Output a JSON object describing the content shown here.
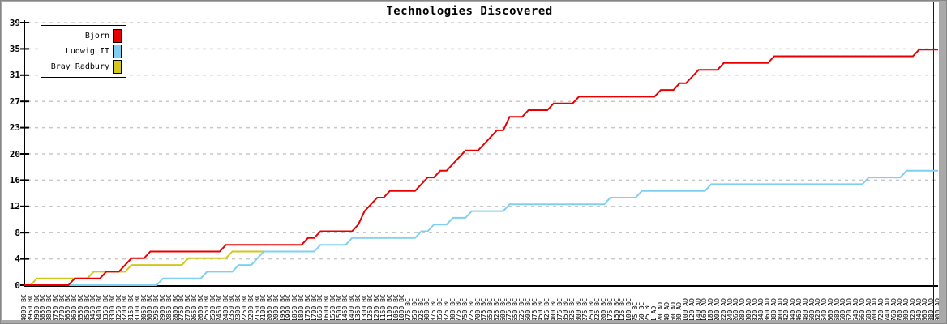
{
  "window": {
    "background": "#ffffff",
    "frame_color": "#a9a9a9"
  },
  "title": "Technologies Discovered",
  "legend": {
    "items": [
      {
        "label": "Bjorn",
        "color": "#e80000"
      },
      {
        "label": "Ludwig II",
        "color": "#7fd0f0"
      },
      {
        "label": "Bray Radbury",
        "color": "#d2c81b"
      }
    ]
  },
  "chart_data": {
    "type": "line",
    "title": "Technologies Discovered",
    "xlabel": "",
    "ylabel": "",
    "grid": true,
    "legend_position": "top-left",
    "y_axis": {
      "min": 0,
      "max": 39,
      "tick_labels": [
        "0",
        "4",
        "8",
        "12",
        "16",
        "20",
        "23",
        "27",
        "31",
        "35",
        "39"
      ]
    },
    "x_axis": {
      "tick_labels": [
        "4000 BC",
        "3950 BC",
        "3900 BC",
        "3850 BC",
        "3800 BC",
        "3750 BC",
        "3700 BC",
        "3650 BC",
        "3600 BC",
        "3550 BC",
        "3500 BC",
        "3450 BC",
        "3400 BC",
        "3350 BC",
        "3300 BC",
        "3250 BC",
        "3200 BC",
        "3150 BC",
        "3100 BC",
        "3050 BC",
        "3000 BC",
        "2950 BC",
        "2900 BC",
        "2850 BC",
        "2800 BC",
        "2750 BC",
        "2700 BC",
        "2650 BC",
        "2600 BC",
        "2550 BC",
        "2500 BC",
        "2450 BC",
        "2400 BC",
        "2350 BC",
        "2300 BC",
        "2250 BC",
        "2200 BC",
        "2150 BC",
        "2100 BC",
        "2050 BC",
        "2000 BC",
        "1950 BC",
        "1900 BC",
        "1850 BC",
        "1800 BC",
        "1750 BC",
        "1700 BC",
        "1650 BC",
        "1600 BC",
        "1550 BC",
        "1500 BC",
        "1450 BC",
        "1400 BC",
        "1350 BC",
        "1300 BC",
        "1250 BC",
        "1200 BC",
        "1150 BC",
        "1100 BC",
        "1050 BC",
        "1000 BC",
        "975 BC",
        "950 BC",
        "925 BC",
        "900 BC",
        "875 BC",
        "850 BC",
        "825 BC",
        "800 BC",
        "775 BC",
        "750 BC",
        "725 BC",
        "700 BC",
        "675 BC",
        "650 BC",
        "625 BC",
        "600 BC",
        "575 BC",
        "550 BC",
        "525 BC",
        "500 BC",
        "475 BC",
        "450 BC",
        "425 BC",
        "400 BC",
        "375 BC",
        "350 BC",
        "325 BC",
        "300 BC",
        "275 BC",
        "250 BC",
        "225 BC",
        "200 BC",
        "175 BC",
        "150 BC",
        "125 BC",
        "100 BC",
        "75 BC",
        "50 BC",
        "25 BC",
        "1 AD",
        "20 AD",
        "40 AD",
        "60 AD",
        "80 AD",
        "100 AD",
        "120 AD",
        "140 AD",
        "160 AD",
        "180 AD",
        "200 AD",
        "220 AD",
        "240 AD",
        "260 AD",
        "280 AD",
        "300 AD",
        "320 AD",
        "340 AD",
        "360 AD",
        "380 AD",
        "400 AD",
        "420 AD",
        "440 AD",
        "460 AD",
        "480 AD",
        "500 AD",
        "520 AD",
        "540 AD",
        "560 AD",
        "580 AD",
        "600 AD",
        "620 AD",
        "640 AD",
        "660 AD",
        "680 AD",
        "700 AD",
        "720 AD",
        "740 AD",
        "760 AD",
        "780 AD",
        "800 AD",
        "820 AD",
        "840 AD",
        "860 AD",
        "880 AD",
        "900 AD"
      ]
    },
    "series": [
      {
        "name": "Bjorn",
        "color": "#e80000",
        "values": [
          0,
          0,
          0,
          0,
          0,
          0,
          0,
          0,
          1,
          1,
          1,
          1,
          1,
          2,
          2,
          2,
          3,
          4,
          4,
          4,
          5,
          5,
          5,
          5,
          5,
          5,
          5,
          5,
          5,
          5,
          5,
          5,
          6,
          6,
          6,
          6,
          6,
          6,
          6,
          6,
          6,
          6,
          6,
          6,
          6,
          7,
          7,
          8,
          8,
          8,
          8,
          8,
          8,
          9,
          11,
          12,
          13,
          13,
          14,
          14,
          14,
          14,
          14,
          15,
          16,
          16,
          17,
          17,
          18,
          19,
          20,
          20,
          20,
          21,
          22,
          23,
          23,
          25,
          25,
          25,
          26,
          26,
          26,
          26,
          27,
          27,
          27,
          27,
          28,
          28,
          28,
          28,
          28,
          28,
          28,
          28,
          28,
          28,
          28,
          28,
          28,
          29,
          29,
          29,
          30,
          30,
          31,
          32,
          32,
          32,
          32,
          33,
          33,
          33,
          33,
          33,
          33,
          33,
          33,
          34,
          34,
          34,
          34,
          34,
          34,
          34,
          34,
          34,
          34,
          34,
          34,
          34,
          34,
          34,
          34,
          34,
          34,
          34,
          34,
          34,
          34,
          34,
          35,
          35,
          35,
          35
        ]
      },
      {
        "name": "Ludwig II",
        "color": "#7fd0f0",
        "values": [
          0,
          0,
          0,
          0,
          0,
          0,
          0,
          0,
          0,
          0,
          0,
          0,
          0,
          0,
          0,
          0,
          0,
          0,
          0,
          0,
          0,
          0,
          1,
          1,
          1,
          1,
          1,
          1,
          1,
          2,
          2,
          2,
          2,
          2,
          3,
          3,
          3,
          4,
          5,
          5,
          5,
          5,
          5,
          5,
          5,
          5,
          5,
          6,
          6,
          6,
          6,
          6,
          7,
          7,
          7,
          7,
          7,
          7,
          7,
          7,
          7,
          7,
          7,
          8,
          8,
          9,
          9,
          9,
          10,
          10,
          10,
          11,
          11,
          11,
          11,
          11,
          11,
          12,
          12,
          12,
          12,
          12,
          12,
          12,
          12,
          12,
          12,
          12,
          12,
          12,
          12,
          12,
          12,
          13,
          13,
          13,
          13,
          13,
          14,
          14,
          14,
          14,
          14,
          14,
          14,
          14,
          14,
          14,
          14,
          15,
          15,
          15,
          15,
          15,
          15,
          15,
          15,
          15,
          15,
          15,
          15,
          15,
          15,
          15,
          15,
          15,
          15,
          15,
          15,
          15,
          15,
          15,
          15,
          15,
          16,
          16,
          16,
          16,
          16,
          16,
          17,
          17,
          17,
          17,
          17,
          17
        ]
      },
      {
        "name": "Bray Radbury",
        "color": "#d2c81b",
        "values": [
          0,
          0,
          1,
          1,
          1,
          1,
          1,
          1,
          1,
          1,
          1,
          2,
          2,
          2,
          2,
          2,
          2,
          3,
          3,
          3,
          3,
          3,
          3,
          3,
          3,
          3,
          4,
          4,
          4,
          4,
          4,
          4,
          4,
          5,
          5,
          5,
          5,
          5,
          5
        ]
      }
    ]
  }
}
